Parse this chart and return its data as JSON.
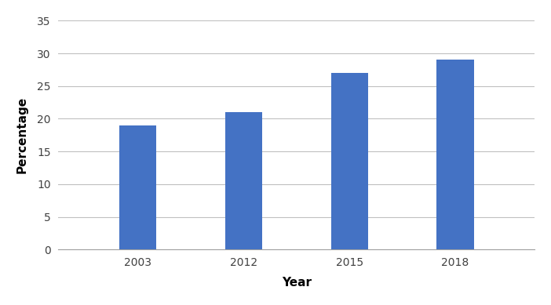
{
  "categories": [
    "2003",
    "2012",
    "2015",
    "2018"
  ],
  "values": [
    19.0,
    21.0,
    27.0,
    29.1
  ],
  "bar_color": "#4472C4",
  "xlabel": "Year",
  "ylabel": "Percentage",
  "ylim": [
    0,
    35
  ],
  "yticks": [
    0,
    5,
    10,
    15,
    20,
    25,
    30,
    35
  ],
  "xlabel_fontsize": 11,
  "ylabel_fontsize": 11,
  "tick_fontsize": 10,
  "bar_width": 0.35,
  "grid_color": "#C0C0C0",
  "background_color": "#FFFFFF"
}
